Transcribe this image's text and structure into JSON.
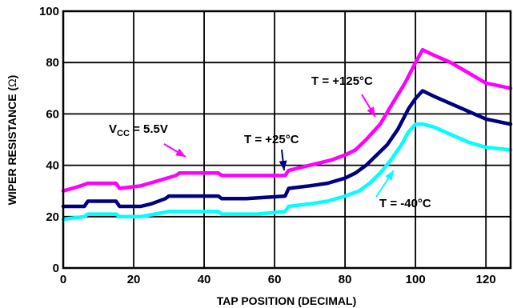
{
  "chart_data": {
    "type": "line",
    "title": "",
    "xlabel": "TAP POSITION (DECIMAL)",
    "ylabel_main": "WIPER RESISTANCE (",
    "ylabel_symbol": "Ω",
    "ylabel_end": ")",
    "xlim": [
      0,
      127
    ],
    "ylim": [
      0,
      100
    ],
    "xticks": [
      "0",
      "20",
      "40",
      "60",
      "80",
      "100",
      "120"
    ],
    "yticks": [
      "0",
      "20",
      "40",
      "60",
      "80",
      "100"
    ],
    "grid": true,
    "series": [
      {
        "name": "T = +125°C",
        "color": "#ff00ff",
        "points": [
          [
            0,
            30
          ],
          [
            5,
            32
          ],
          [
            7,
            33
          ],
          [
            15,
            33
          ],
          [
            16,
            31
          ],
          [
            22,
            32
          ],
          [
            27,
            34
          ],
          [
            32,
            36
          ],
          [
            33,
            37
          ],
          [
            44,
            37
          ],
          [
            45,
            36
          ],
          [
            50,
            36
          ],
          [
            63,
            36
          ],
          [
            64,
            38
          ],
          [
            70,
            40
          ],
          [
            76,
            42
          ],
          [
            80,
            44
          ],
          [
            83,
            46
          ],
          [
            86,
            50
          ],
          [
            90,
            56
          ],
          [
            93,
            63
          ],
          [
            97,
            72
          ],
          [
            100,
            80
          ],
          [
            102,
            85
          ],
          [
            105,
            83
          ],
          [
            110,
            80
          ],
          [
            115,
            76
          ],
          [
            120,
            72
          ],
          [
            127,
            70
          ]
        ]
      },
      {
        "name": "T = +25°C",
        "color": "#000080",
        "points": [
          [
            0,
            24
          ],
          [
            6,
            24
          ],
          [
            7,
            26
          ],
          [
            15,
            26
          ],
          [
            16,
            24
          ],
          [
            22,
            24
          ],
          [
            25,
            25
          ],
          [
            29,
            27
          ],
          [
            30,
            28
          ],
          [
            44,
            28
          ],
          [
            45,
            27
          ],
          [
            52,
            27
          ],
          [
            63,
            28
          ],
          [
            64,
            31
          ],
          [
            70,
            32
          ],
          [
            75,
            33
          ],
          [
            80,
            35
          ],
          [
            83,
            37
          ],
          [
            86,
            40
          ],
          [
            89,
            44
          ],
          [
            92,
            48
          ],
          [
            95,
            54
          ],
          [
            98,
            62
          ],
          [
            100,
            66
          ],
          [
            102,
            69
          ],
          [
            105,
            67
          ],
          [
            110,
            64
          ],
          [
            115,
            61
          ],
          [
            120,
            58
          ],
          [
            127,
            56
          ]
        ]
      },
      {
        "name": "T = -40°C",
        "color": "#00ffff",
        "points": [
          [
            0,
            19
          ],
          [
            6,
            20
          ],
          [
            7,
            21
          ],
          [
            15,
            21
          ],
          [
            16,
            20
          ],
          [
            22,
            20
          ],
          [
            26,
            21
          ],
          [
            30,
            22
          ],
          [
            44,
            22
          ],
          [
            45,
            21
          ],
          [
            55,
            21
          ],
          [
            63,
            22
          ],
          [
            64,
            24
          ],
          [
            70,
            25
          ],
          [
            75,
            26
          ],
          [
            80,
            28
          ],
          [
            84,
            30
          ],
          [
            87,
            33
          ],
          [
            90,
            37
          ],
          [
            93,
            42
          ],
          [
            96,
            48
          ],
          [
            98,
            53
          ],
          [
            100,
            56
          ],
          [
            102,
            56
          ],
          [
            105,
            55
          ],
          [
            110,
            52
          ],
          [
            115,
            49
          ],
          [
            120,
            47
          ],
          [
            127,
            46
          ]
        ]
      }
    ],
    "annotations": [
      {
        "prefix": "V",
        "sub": "CC",
        "suffix": " = 5.5V",
        "color": "#ff00ff"
      },
      {
        "text": "T = +25°C",
        "color": "#000080"
      },
      {
        "text": "T = +125°C",
        "color": "#ff00ff"
      },
      {
        "text": "T = -40°C",
        "color": "#00ffff"
      }
    ]
  }
}
